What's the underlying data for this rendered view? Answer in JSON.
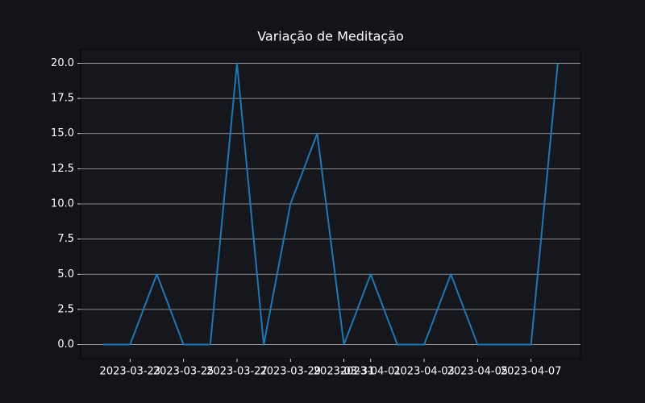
{
  "chart_data": {
    "type": "line",
    "title": "Variação de Meditação",
    "x": [
      "2023-03-22",
      "2023-03-23",
      "2023-03-24",
      "2023-03-25",
      "2023-03-26",
      "2023-03-27",
      "2023-03-28",
      "2023-03-29",
      "2023-03-30",
      "2023-03-31",
      "2023-04-01",
      "2023-04-02",
      "2023-04-03",
      "2023-04-04",
      "2023-04-05",
      "2023-04-06",
      "2023-04-07",
      "2023-04-08"
    ],
    "series": [
      {
        "name": "Meditação",
        "color": "#1f77b4",
        "values": [
          0,
          0,
          5,
          0,
          0,
          20,
          0,
          10,
          15,
          0,
          5,
          0,
          0,
          5,
          0,
          0,
          0,
          20
        ]
      }
    ],
    "xlim": [
      "2023-03-21T03:36:00Z",
      "2023-04-08T20:24:00Z"
    ],
    "xticks": [
      "2023-03-23",
      "2023-03-25",
      "2023-03-27",
      "2023-03-29",
      "2023-03-31",
      "2023-04-01",
      "2023-04-03",
      "2023-04-05",
      "2023-04-07"
    ],
    "ylim": [
      -1,
      21
    ],
    "yticks": [
      {
        "value": 0,
        "label": "0.0"
      },
      {
        "value": 2.5,
        "label": "2.5"
      },
      {
        "value": 5,
        "label": "5.0"
      },
      {
        "value": 7.5,
        "label": "7.5"
      },
      {
        "value": 10,
        "label": "10.0"
      },
      {
        "value": 12.5,
        "label": "12.5"
      },
      {
        "value": 15,
        "label": "15.0"
      },
      {
        "value": 17.5,
        "label": "17.5"
      },
      {
        "value": 20,
        "label": "20.0"
      }
    ],
    "grid": true
  }
}
